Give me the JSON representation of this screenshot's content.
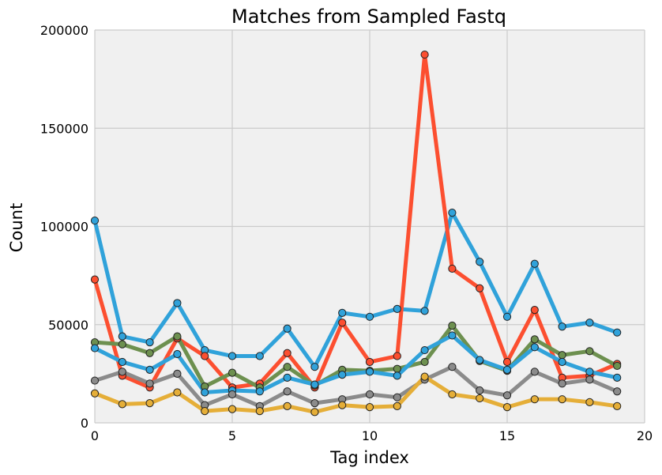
{
  "chart_data": {
    "type": "line",
    "title": "Matches from Sampled Fastq",
    "xlabel": "Tag index",
    "ylabel": "Count",
    "xlim": [
      0,
      20
    ],
    "ylim": [
      0,
      200000
    ],
    "xticks": [
      "0",
      "5",
      "10",
      "15",
      "20"
    ],
    "yticks": [
      "0",
      "50000",
      "100000",
      "150000",
      "200000"
    ],
    "grid": true,
    "x": [
      0,
      1,
      2,
      3,
      4,
      5,
      6,
      7,
      8,
      9,
      10,
      11,
      12,
      13,
      14,
      15,
      16,
      17,
      18,
      19
    ],
    "series": [
      {
        "color": "#30a2da",
        "values": [
          103000,
          44000,
          41000,
          61000,
          37000,
          34000,
          34000,
          48000,
          28500,
          56000,
          54000,
          58000,
          57000,
          107000,
          82000,
          54000,
          81000,
          49000,
          51000,
          46000
        ]
      },
      {
        "color": "#fc4f30",
        "values": [
          73000,
          24000,
          18000,
          43000,
          34000,
          18000,
          20000,
          35500,
          18000,
          51000,
          31000,
          34000,
          187500,
          78500,
          68500,
          31000,
          57500,
          23000,
          24000,
          30000
        ]
      },
      {
        "color": "#6d904f",
        "values": [
          41000,
          40000,
          35500,
          44000,
          18500,
          25500,
          18000,
          28500,
          19000,
          27000,
          26500,
          27500,
          31000,
          49500,
          31500,
          26500,
          42500,
          34500,
          36500,
          29000
        ]
      },
      {
        "color": "#30a2da",
        "values": [
          38000,
          31000,
          27000,
          35000,
          15500,
          16500,
          16000,
          23000,
          19500,
          24500,
          26000,
          24000,
          37000,
          44500,
          32000,
          27000,
          38500,
          31000,
          26000,
          23000
        ]
      },
      {
        "color": "#8b8b8b",
        "values": [
          21500,
          26000,
          20000,
          25000,
          9000,
          14500,
          8500,
          16000,
          10000,
          12000,
          14500,
          13000,
          22000,
          28500,
          16500,
          14000,
          26000,
          20000,
          22000,
          16000
        ]
      },
      {
        "color": "#e5ae38",
        "values": [
          15000,
          9500,
          10000,
          15500,
          6000,
          7000,
          6000,
          8500,
          5500,
          9000,
          8000,
          8500,
          23500,
          14500,
          12500,
          8000,
          12000,
          12000,
          10500,
          8500
        ]
      }
    ]
  }
}
